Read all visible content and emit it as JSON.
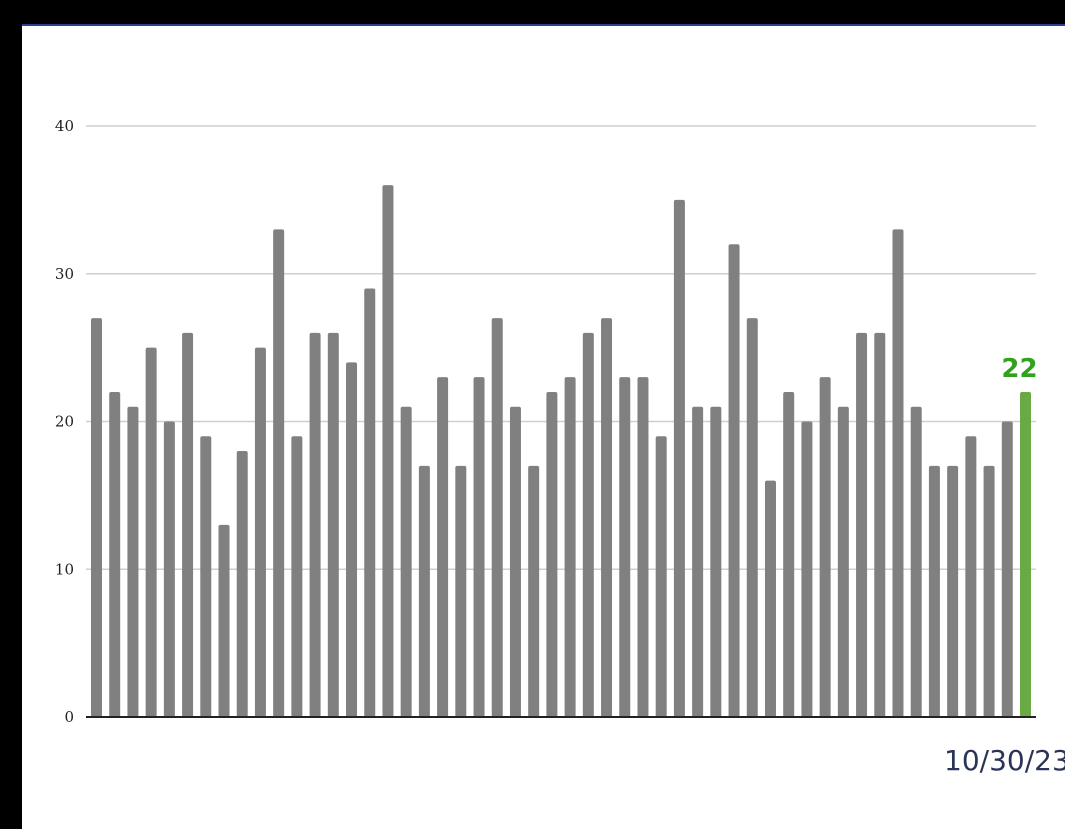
{
  "chart_data": {
    "type": "bar",
    "values": [
      27,
      22,
      21,
      25,
      20,
      26,
      19,
      13,
      18,
      25,
      33,
      19,
      26,
      26,
      24,
      29,
      36,
      21,
      17,
      23,
      17,
      23,
      27,
      21,
      17,
      22,
      23,
      26,
      27,
      23,
      23,
      19,
      35,
      21,
      21,
      32,
      27,
      16,
      22,
      20,
      23,
      21,
      26,
      26,
      33,
      21,
      17,
      17,
      19,
      17,
      20,
      22
    ],
    "ylim": [
      0,
      40
    ],
    "yticks": [
      "0",
      "10",
      "20",
      "30",
      "40"
    ],
    "grid": true,
    "highlight_index": 51,
    "highlight_value_label": "22",
    "last_date_label": "10/30/23",
    "colors": {
      "bar": "#808080",
      "highlight_bar": "#6aaa45",
      "highlight_label": "#2ea31b",
      "grid": "#cfcfcf"
    }
  }
}
